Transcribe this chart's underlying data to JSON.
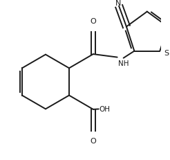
{
  "background_color": "#ffffff",
  "line_color": "#1a1a1a",
  "line_width": 1.4,
  "figsize": [
    2.46,
    2.32
  ],
  "dpi": 100,
  "xlim": [
    0.0,
    1.0
  ],
  "ylim": [
    0.0,
    1.0
  ]
}
